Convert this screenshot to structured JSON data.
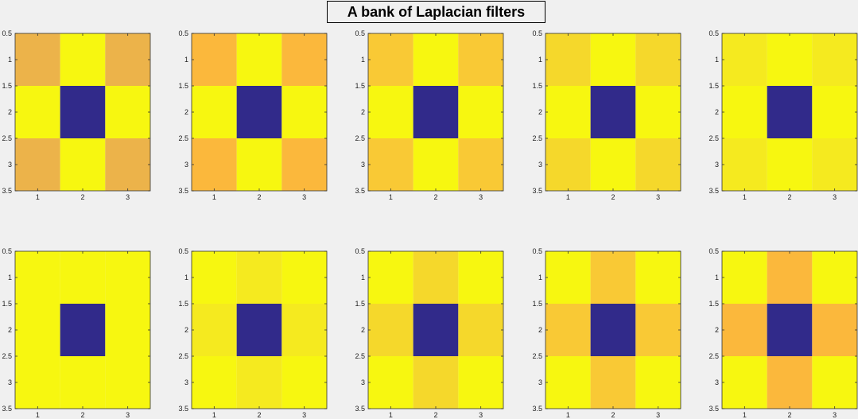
{
  "figure": {
    "title": "A bank of Laplacian filters"
  },
  "chart_data": {
    "type": "heatmap",
    "title": "A bank of Laplacian filters",
    "xlim": [
      0.5,
      3.5
    ],
    "ylim": [
      0.5,
      3.5
    ],
    "x_ticks": [
      "1",
      "2",
      "3"
    ],
    "y_ticks": [
      "0.5",
      "1",
      "1.5",
      "2",
      "2.5",
      "3",
      "3.5"
    ],
    "grid": false,
    "panels": [
      {
        "colors": [
          [
            "#ecb34a",
            "#f7f710",
            "#ecb34a"
          ],
          [
            "#f7f710",
            "#312a8a",
            "#f7f710"
          ],
          [
            "#ecb34a",
            "#f7f710",
            "#ecb34a"
          ]
        ]
      },
      {
        "colors": [
          [
            "#fbb83c",
            "#f7f710",
            "#fbb83c"
          ],
          [
            "#f7f710",
            "#312a8a",
            "#f7f710"
          ],
          [
            "#fbb83c",
            "#f7f710",
            "#fbb83c"
          ]
        ]
      },
      {
        "colors": [
          [
            "#f9c935",
            "#f7f710",
            "#f9c935"
          ],
          [
            "#f7f710",
            "#312a8a",
            "#f7f710"
          ],
          [
            "#f9c935",
            "#f7f710",
            "#f9c935"
          ]
        ]
      },
      {
        "colors": [
          [
            "#f5d82b",
            "#f7f710",
            "#f5d82b"
          ],
          [
            "#f7f710",
            "#312a8a",
            "#f7f710"
          ],
          [
            "#f5d82b",
            "#f7f710",
            "#f5d82b"
          ]
        ]
      },
      {
        "colors": [
          [
            "#f5ea1f",
            "#f7f710",
            "#f5ea1f"
          ],
          [
            "#f7f710",
            "#312a8a",
            "#f7f710"
          ],
          [
            "#f5ea1f",
            "#f7f710",
            "#f5ea1f"
          ]
        ]
      },
      {
        "colors": [
          [
            "#f7f710",
            "#f7f710",
            "#f7f710"
          ],
          [
            "#f7f710",
            "#312a8a",
            "#f7f710"
          ],
          [
            "#f7f710",
            "#f7f710",
            "#f7f710"
          ]
        ]
      },
      {
        "colors": [
          [
            "#f7f710",
            "#f5ea1f",
            "#f7f710"
          ],
          [
            "#f5ea1f",
            "#312a8a",
            "#f5ea1f"
          ],
          [
            "#f7f710",
            "#f5ea1f",
            "#f7f710"
          ]
        ]
      },
      {
        "colors": [
          [
            "#f7f710",
            "#f5d82b",
            "#f7f710"
          ],
          [
            "#f5d82b",
            "#312a8a",
            "#f5d82b"
          ],
          [
            "#f7f710",
            "#f5d82b",
            "#f7f710"
          ]
        ]
      },
      {
        "colors": [
          [
            "#f7f710",
            "#f9c935",
            "#f7f710"
          ],
          [
            "#f9c935",
            "#312a8a",
            "#f9c935"
          ],
          [
            "#f7f710",
            "#f9c935",
            "#f7f710"
          ]
        ]
      },
      {
        "colors": [
          [
            "#f7f710",
            "#fbb83c",
            "#f7f710"
          ],
          [
            "#fbb83c",
            "#312a8a",
            "#fbb83c"
          ],
          [
            "#f7f710",
            "#fbb83c",
            "#f7f710"
          ]
        ]
      }
    ]
  }
}
